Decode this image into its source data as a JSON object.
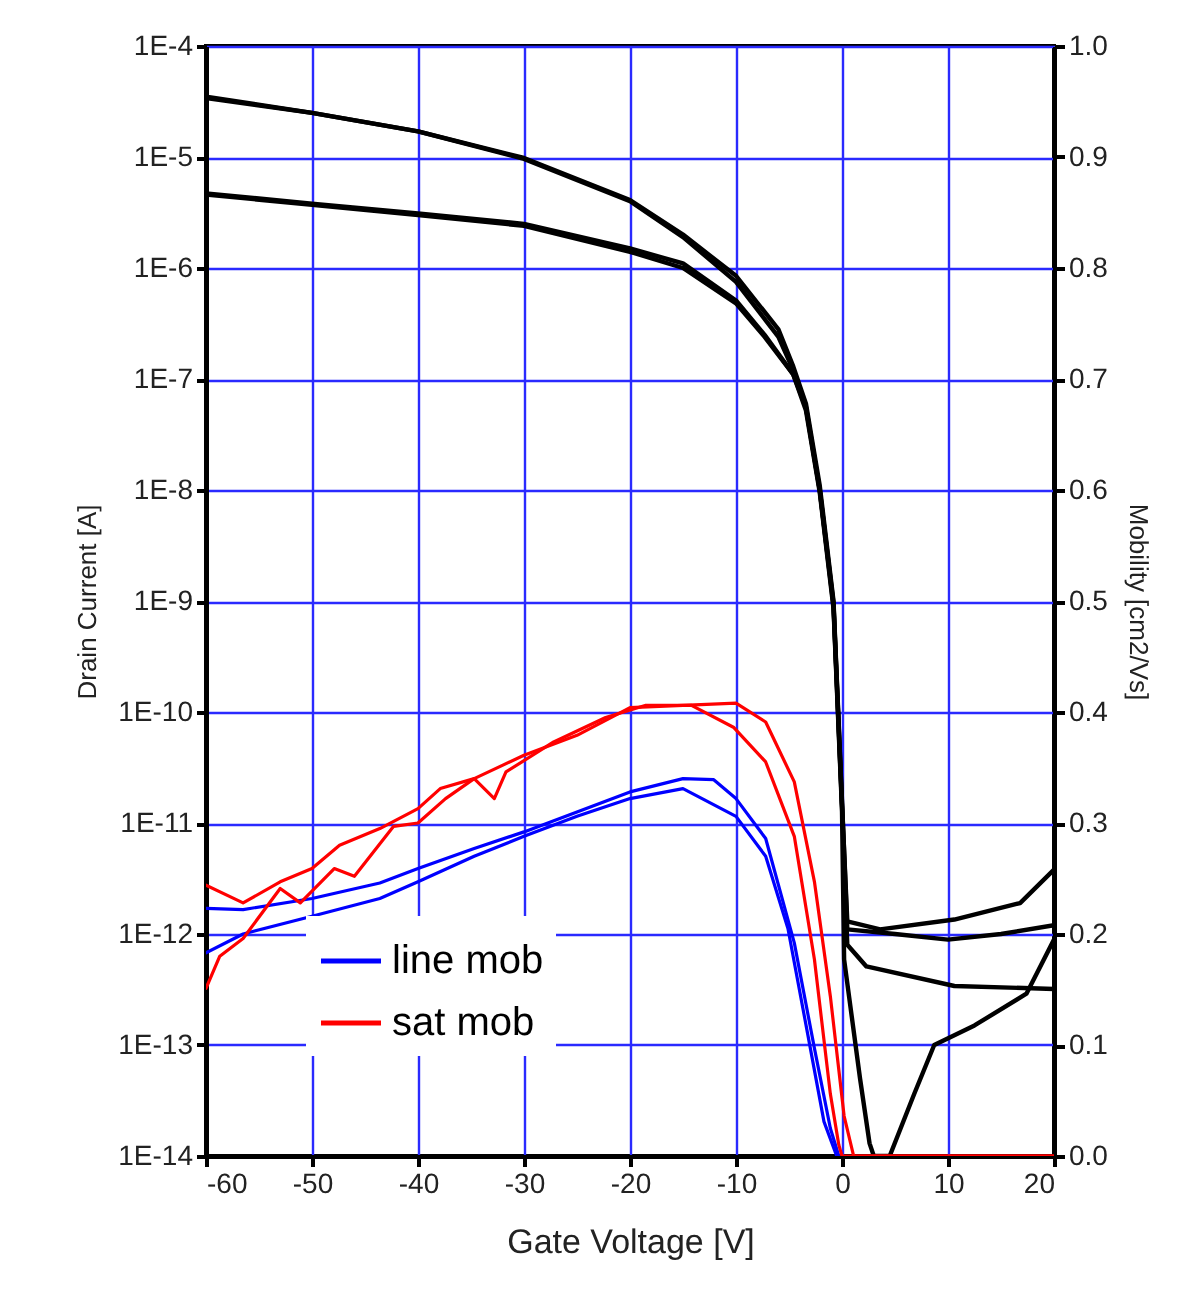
{
  "chart_data": {
    "type": "line",
    "xlabel": "Gate Voltage [V]",
    "ylabel": "Drain Current [A]",
    "y2label": "Mobility [cm2/Vs]",
    "xlim": [
      -60,
      20
    ],
    "xticks": [
      -60,
      -50,
      -40,
      -30,
      -20,
      -10,
      0,
      10,
      20
    ],
    "ylim": [
      1e-14,
      0.0001
    ],
    "yticks": [
      {
        "value": 1e-14,
        "label": "1E-14"
      },
      {
        "value": 1e-13,
        "label": "1E-13"
      },
      {
        "value": 1e-12,
        "label": "1E-12"
      },
      {
        "value": 1e-11,
        "label": "1E-11"
      },
      {
        "value": 1e-10,
        "label": "1E-10"
      },
      {
        "value": 1e-09,
        "label": "1E-9"
      },
      {
        "value": 1e-08,
        "label": "1E-8"
      },
      {
        "value": 1e-07,
        "label": "1E-7"
      },
      {
        "value": 1e-06,
        "label": "1E-6"
      },
      {
        "value": 1e-05,
        "label": "1E-5"
      },
      {
        "value": 0.0001,
        "label": "1E-4"
      }
    ],
    "y2lim": [
      0,
      1
    ],
    "y2ticks": [
      {
        "value": 0,
        "label": "0.0"
      },
      0.1,
      0.2,
      0.3,
      0.4,
      0.5,
      0.6,
      0.7,
      0.8,
      0.9,
      {
        "value": 1,
        "label": "1.0"
      }
    ],
    "log": "y",
    "grid": true,
    "legend": "bottom left",
    "series": [
      {
        "color": "#000000",
        "x": [
          -60,
          -50,
          -40,
          -30,
          -20,
          -15,
          -10,
          -6,
          -4.6,
          -3.4,
          -2.1,
          -0.8,
          0,
          0.5,
          5,
          10,
          15,
          20
        ],
        "values": [
          3.4e-05,
          2.5e-05,
          1.7e-05,
          9.8e-06,
          4.1e-06,
          2e-06,
          8.5e-07,
          2.8e-07,
          1.3e-07,
          6e-08,
          1.1e-08,
          1e-09,
          1.6e-11,
          1.1e-12,
          1e-12,
          8.9e-13,
          1e-12,
          1.2e-12
        ]
      },
      {
        "color": "#000000",
        "x": [
          -60,
          -50,
          -40,
          -30,
          -20,
          -15,
          -10,
          -6,
          -4.6,
          -3.4,
          -2.1,
          -0.8,
          0,
          0.5,
          3.6,
          10.6,
          16.8,
          20
        ],
        "values": [
          3.5e-05,
          2.5e-05,
          1.7e-05,
          9.6e-06,
          4e-06,
          1.9e-06,
          7.5e-07,
          2.4e-07,
          1.2e-07,
          5.6e-08,
          1e-08,
          9.5e-10,
          1.5e-11,
          1.3e-12,
          1.1e-12,
          1.35e-12,
          1.9e-12,
          3.8e-12
        ]
      },
      {
        "color": "#000000",
        "x": [
          -60,
          -50,
          -40,
          -30,
          -20,
          -15,
          -10,
          -7.3,
          -4.6,
          -3.4,
          -2.1,
          -0.8,
          0,
          0.5,
          2.3,
          10.6,
          20
        ],
        "values": [
          4.7e-06,
          3.8e-06,
          3.1e-06,
          2.5e-06,
          1.5e-06,
          1.1e-06,
          5.1e-07,
          2.5e-07,
          1.1e-07,
          5.5e-08,
          1e-08,
          9e-10,
          1.4e-11,
          8e-13,
          5.1e-13,
          3.4e-13,
          3.2e-13
        ]
      },
      {
        "color": "#000000",
        "x": [
          -60,
          -50,
          -40,
          -30,
          -20,
          -15,
          -10,
          -7.3,
          -4.6,
          -3.4,
          -2.1,
          -0.8,
          0,
          0.2,
          1.7,
          2.6,
          3,
          4.5,
          6.8,
          8.7,
          12.5,
          17.4,
          20
        ],
        "values": [
          4.6e-06,
          3.7e-06,
          3e-06,
          2.4e-06,
          1.4e-06,
          1e-06,
          4.8e-07,
          2.4e-07,
          1.1e-07,
          5.2e-08,
          9.5e-09,
          8.5e-10,
          1.3e-11,
          5.9e-13,
          5e-14,
          1.3e-14,
          1e-14,
          1e-14,
          3.6e-14,
          1e-13,
          1.5e-13,
          2.9e-13,
          8.9e-13
        ]
      },
      {
        "name": "line mob",
        "color": "#0000ff",
        "axis": "y2",
        "x": [
          -60,
          -56.5,
          -50,
          -43.6,
          -40,
          -34.7,
          -30,
          -25,
          -20,
          -15,
          -12.1,
          -10,
          -7.2,
          -4.5,
          -2.6,
          -1.1,
          -0.3
        ],
        "values": [
          0.223,
          0.222,
          0.232,
          0.246,
          0.259,
          0.277,
          0.292,
          0.31,
          0.328,
          0.34,
          0.339,
          0.322,
          0.286,
          0.192,
          0.097,
          0.025,
          0
        ]
      },
      {
        "color": "#0000ff",
        "axis": "y2",
        "x": [
          -60,
          -56.5,
          -50,
          -43.6,
          -40,
          -34.7,
          -30,
          -25,
          -20,
          -15,
          -10,
          -7.2,
          -5.1,
          -3.2,
          -1.7,
          -0.5
        ],
        "values": [
          0.183,
          0.2,
          0.216,
          0.232,
          0.247,
          0.27,
          0.288,
          0.306,
          0.322,
          0.331,
          0.306,
          0.27,
          0.205,
          0.108,
          0.031,
          0
        ]
      },
      {
        "name": "sat mob",
        "color": "#ff0000",
        "axis": "y2",
        "x": [
          -60,
          -56.5,
          -53,
          -50,
          -47.4,
          -43.6,
          -40,
          -37.9,
          -34.7,
          -30,
          -25,
          -20,
          -15,
          -10,
          -7.2,
          -4.5,
          -2.6,
          -1.1,
          0.2,
          1.1,
          20
        ],
        "values": [
          0.244,
          0.228,
          0.247,
          0.259,
          0.28,
          0.295,
          0.313,
          0.331,
          0.34,
          0.361,
          0.379,
          0.404,
          0.406,
          0.408,
          0.391,
          0.337,
          0.247,
          0.144,
          0.036,
          0,
          0
        ]
      },
      {
        "color": "#ff0000",
        "axis": "y2",
        "x": [
          -60,
          -58.7,
          -56.5,
          -53,
          -51.1,
          -47.9,
          -46,
          -42.3,
          -40,
          -37.4,
          -34.7,
          -32.8,
          -31.7,
          -27.2,
          -22.3,
          -18.5,
          -14.2,
          -10.2,
          -7.2,
          -4.5,
          -2.6,
          -1.1,
          -0.3,
          0,
          20
        ],
        "values": [
          0.151,
          0.18,
          0.196,
          0.241,
          0.228,
          0.259,
          0.252,
          0.297,
          0.3,
          0.322,
          0.34,
          0.322,
          0.346,
          0.373,
          0.395,
          0.406,
          0.406,
          0.386,
          0.355,
          0.288,
          0.177,
          0.056,
          0.01,
          0,
          0
        ]
      }
    ]
  }
}
